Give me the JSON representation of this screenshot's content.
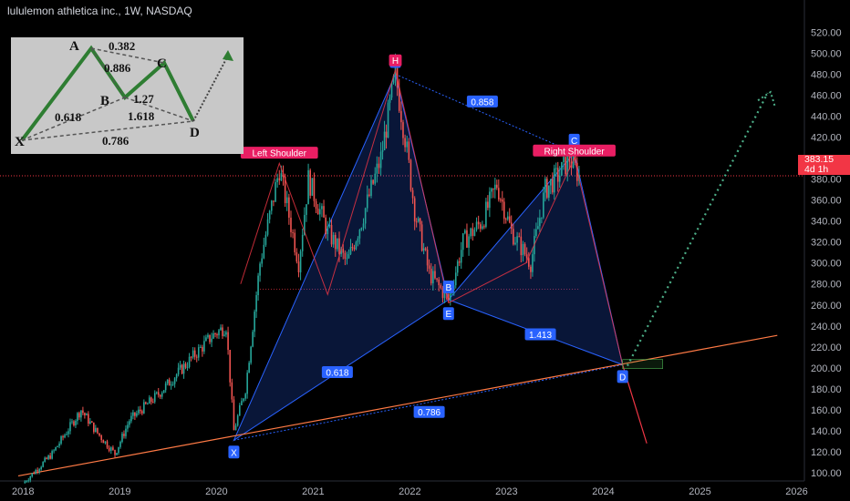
{
  "header": {
    "title": "lululemon athletica inc., 1W, NASDAQ"
  },
  "price_tag": {
    "price": "383.15",
    "countdown": "4d 1h",
    "color": "#f23645"
  },
  "colors": {
    "up": "#26a69a",
    "down": "#ef5350",
    "pattern": "#2962ff",
    "trend": "#ff7a45",
    "marker": "#e91e63",
    "projection": "#4caf88"
  },
  "chart_data": {
    "type": "candlestick",
    "title": "lululemon athletica inc., 1W, NASDAQ",
    "y_ticks": [
      100,
      120,
      140,
      160,
      180,
      200,
      220,
      240,
      260,
      280,
      300,
      320,
      340,
      360,
      380,
      400,
      420,
      440,
      460,
      480,
      500,
      520
    ],
    "x_ticks": [
      "2018",
      "2019",
      "2020",
      "2021",
      "2022",
      "2023",
      "2024",
      "2025",
      "2026"
    ],
    "ylim": [
      90,
      525
    ],
    "xlim": [
      2017.95,
      2026.25
    ],
    "last_price": 383.15,
    "price_path": [
      [
        2018.0,
        90
      ],
      [
        2018.3,
        118
      ],
      [
        2018.6,
        160
      ],
      [
        2018.75,
        140
      ],
      [
        2018.95,
        118
      ],
      [
        2019.1,
        150
      ],
      [
        2019.4,
        175
      ],
      [
        2019.7,
        205
      ],
      [
        2019.95,
        230
      ],
      [
        2020.1,
        240
      ],
      [
        2020.18,
        140
      ],
      [
        2020.3,
        180
      ],
      [
        2020.45,
        300
      ],
      [
        2020.65,
        390
      ],
      [
        2020.85,
        300
      ],
      [
        2020.95,
        380
      ],
      [
        2021.15,
        330
      ],
      [
        2021.35,
        300
      ],
      [
        2021.5,
        340
      ],
      [
        2021.7,
        400
      ],
      [
        2021.85,
        480
      ],
      [
        2021.95,
        420
      ],
      [
        2022.05,
        350
      ],
      [
        2022.2,
        290
      ],
      [
        2022.4,
        265
      ],
      [
        2022.55,
        320
      ],
      [
        2022.75,
        340
      ],
      [
        2022.9,
        375
      ],
      [
        2023.05,
        330
      ],
      [
        2023.25,
        300
      ],
      [
        2023.4,
        370
      ],
      [
        2023.55,
        385
      ],
      [
        2023.65,
        400
      ],
      [
        2023.75,
        383
      ]
    ],
    "harmonic_pattern": {
      "points": [
        {
          "label": "X",
          "x": 2020.18,
          "y": 131
        },
        {
          "label": "A",
          "x": 2021.85,
          "y": 480
        },
        {
          "label": "B",
          "x": 2022.4,
          "y": 265
        },
        {
          "label": "C",
          "x": 2023.7,
          "y": 405
        },
        {
          "label": "D",
          "x": 2024.2,
          "y": 203
        }
      ],
      "ratios": [
        {
          "text": "0.618",
          "x": 2021.25,
          "y": 196
        },
        {
          "text": "0.858",
          "x": 2022.75,
          "y": 454
        },
        {
          "text": "1.413",
          "x": 2023.35,
          "y": 232
        },
        {
          "text": "0.786",
          "x": 2022.2,
          "y": 158
        }
      ]
    },
    "head_and_shoulders": [
      {
        "label": "Left Shoulder",
        "x": 2020.65,
        "y": 400
      },
      {
        "label": "H",
        "x": 2021.85,
        "y": 488
      },
      {
        "label": "Right Shoulder",
        "x": 2023.7,
        "y": 402
      },
      {
        "label": "E",
        "x": 2022.4,
        "y": 257
      }
    ],
    "neckline": 275,
    "trendline": [
      [
        2017.95,
        97
      ],
      [
        2025.8,
        231
      ]
    ],
    "projection": [
      [
        2024.25,
        202
      ],
      [
        2025.7,
        462
      ]
    ],
    "drop_line": [
      [
        2024.2,
        203
      ],
      [
        2024.45,
        128
      ]
    ]
  },
  "inset": {
    "labels": [
      "A",
      "B",
      "C",
      "D",
      "X"
    ],
    "ratios": [
      "0.382",
      "0.886",
      "1.27",
      "0.618",
      "1.618",
      "0.786"
    ]
  }
}
